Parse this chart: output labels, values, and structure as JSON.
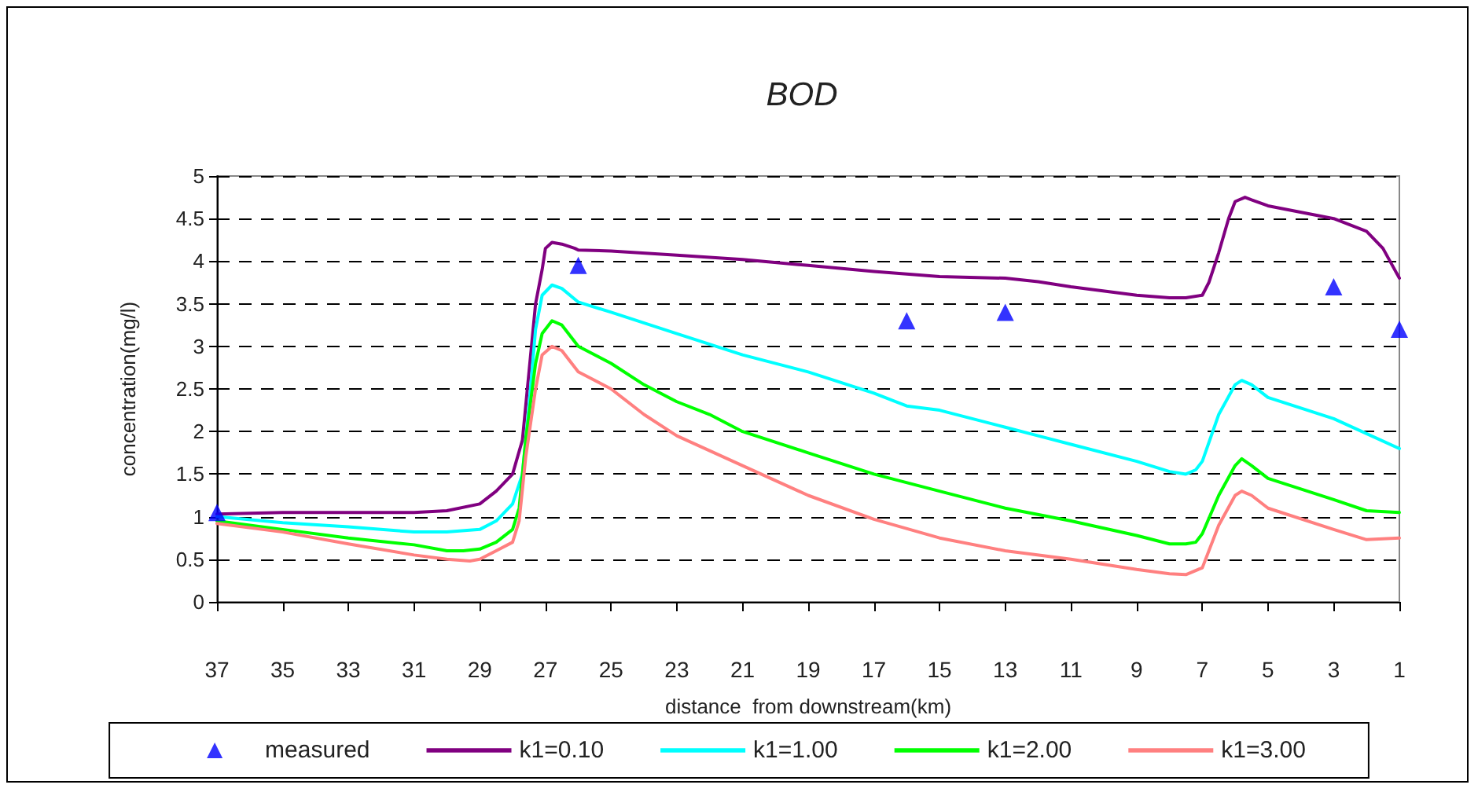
{
  "chart_data": {
    "type": "line",
    "title": "BOD",
    "xlabel": "distance  from downstream(km)",
    "ylabel": "concentration(mg/l)",
    "xlim": [
      37,
      1
    ],
    "xticks": [
      37,
      35,
      33,
      31,
      29,
      27,
      25,
      23,
      21,
      19,
      17,
      15,
      13,
      11,
      9,
      7,
      5,
      3,
      1
    ],
    "ylim": [
      0,
      5
    ],
    "yticks": [
      0,
      0.5,
      1,
      1.5,
      2,
      2.5,
      3,
      3.5,
      4,
      4.5,
      5
    ],
    "grid": "y",
    "legend": "bottom",
    "series": [
      {
        "name": "measured",
        "type": "scatter",
        "marker": "triangle",
        "color": "#0000ff",
        "x": [
          37,
          26,
          16,
          13,
          3,
          1
        ],
        "values": [
          1.05,
          3.95,
          3.3,
          3.4,
          3.7,
          3.2
        ]
      },
      {
        "name": "k1=0.10",
        "type": "line",
        "marker": "none",
        "color": "#800080",
        "x": [
          37,
          35,
          31,
          30,
          29,
          28.5,
          28,
          27.7,
          27.5,
          27.3,
          27.1,
          27,
          26.8,
          26.5,
          26.1,
          26,
          25,
          23,
          21,
          19,
          17,
          15,
          13,
          12,
          11,
          9,
          8,
          7.5,
          7,
          6.8,
          6.5,
          6.2,
          6,
          5.7,
          5.5,
          5,
          3,
          2,
          1.5,
          1
        ],
        "values": [
          1.03,
          1.05,
          1.05,
          1.07,
          1.15,
          1.3,
          1.5,
          1.9,
          2.7,
          3.5,
          3.9,
          4.15,
          4.22,
          4.2,
          4.15,
          4.13,
          4.12,
          4.07,
          4.02,
          3.95,
          3.88,
          3.82,
          3.8,
          3.76,
          3.7,
          3.6,
          3.57,
          3.57,
          3.6,
          3.75,
          4.1,
          4.5,
          4.7,
          4.75,
          4.72,
          4.65,
          4.5,
          4.35,
          4.15,
          3.8
        ]
      },
      {
        "name": "k1=1.00",
        "type": "line",
        "marker": "none",
        "color": "#00ffff",
        "x": [
          37,
          35,
          33,
          31,
          30,
          29,
          28.5,
          28,
          27.7,
          27.5,
          27.3,
          27.1,
          26.8,
          26.5,
          26,
          25,
          23,
          21,
          19,
          17,
          16,
          15,
          13,
          12,
          11,
          9,
          8,
          7.5,
          7.2,
          7,
          6.5,
          6,
          5.8,
          5.5,
          5,
          3,
          1
        ],
        "values": [
          1.0,
          0.93,
          0.88,
          0.82,
          0.82,
          0.85,
          0.95,
          1.15,
          1.5,
          2.3,
          3.2,
          3.6,
          3.72,
          3.68,
          3.52,
          3.4,
          3.15,
          2.9,
          2.7,
          2.45,
          2.3,
          2.25,
          2.05,
          1.95,
          1.85,
          1.65,
          1.53,
          1.5,
          1.55,
          1.65,
          2.2,
          2.55,
          2.6,
          2.55,
          2.4,
          2.15,
          1.8
        ]
      },
      {
        "name": "k1=2.00",
        "type": "line",
        "marker": "none",
        "color": "#00ff00",
        "x": [
          37,
          35,
          33,
          31,
          30,
          29.5,
          29,
          28.5,
          28,
          27.8,
          27.6,
          27.3,
          27.1,
          26.8,
          26.5,
          26,
          25,
          24,
          23,
          22,
          21,
          19,
          17,
          15,
          13,
          11,
          9,
          8,
          7.5,
          7.2,
          7,
          6.5,
          6,
          5.8,
          5.5,
          5,
          3,
          2,
          1
        ],
        "values": [
          0.95,
          0.85,
          0.75,
          0.67,
          0.6,
          0.6,
          0.62,
          0.7,
          0.85,
          1.1,
          1.9,
          2.8,
          3.15,
          3.3,
          3.25,
          3.0,
          2.8,
          2.55,
          2.35,
          2.2,
          2.0,
          1.75,
          1.5,
          1.3,
          1.1,
          0.95,
          0.78,
          0.68,
          0.68,
          0.7,
          0.8,
          1.25,
          1.6,
          1.68,
          1.6,
          1.45,
          1.2,
          1.07,
          1.05
        ]
      },
      {
        "name": "k1=3.00",
        "type": "line",
        "marker": "none",
        "color": "#ff8080",
        "x": [
          37,
          35,
          33,
          31,
          30,
          29.3,
          29,
          28.5,
          28,
          27.8,
          27.6,
          27.3,
          27.1,
          26.8,
          26.5,
          26,
          25,
          24,
          23,
          21,
          19,
          17,
          15,
          13,
          11,
          9,
          8,
          7.5,
          7,
          6.5,
          6,
          5.8,
          5.5,
          5,
          3,
          2,
          1
        ],
        "values": [
          0.92,
          0.82,
          0.68,
          0.55,
          0.5,
          0.48,
          0.5,
          0.6,
          0.7,
          0.95,
          1.7,
          2.5,
          2.9,
          3.0,
          2.95,
          2.7,
          2.5,
          2.2,
          1.95,
          1.6,
          1.25,
          0.97,
          0.75,
          0.6,
          0.5,
          0.38,
          0.33,
          0.32,
          0.4,
          0.9,
          1.25,
          1.3,
          1.25,
          1.1,
          0.85,
          0.73,
          0.75
        ]
      }
    ]
  }
}
